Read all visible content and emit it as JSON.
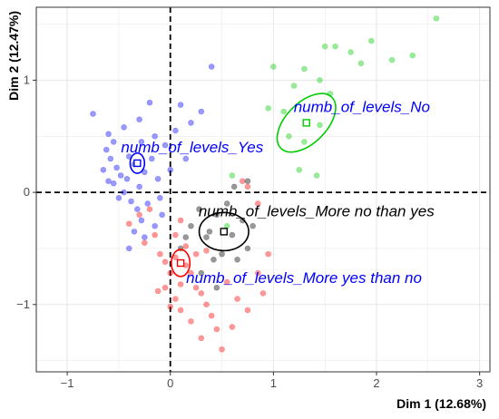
{
  "colors": {
    "yes": "#0000ff",
    "no": "#00cc00",
    "more_no": "#000000",
    "more_yes": "#ff0000",
    "grid": "#e6e6e6",
    "panel_border": "#333333",
    "label_blue": "#0000ff",
    "label_black": "#000000"
  },
  "chart_data": {
    "type": "scatter",
    "title": "",
    "xlabel": "Dim 1 (12.68%)",
    "ylabel": "Dim 2 (12.47%)",
    "xlim": [
      -1.3,
      3.1
    ],
    "ylim": [
      -1.6,
      1.65
    ],
    "xticks": [
      -1,
      0,
      1,
      2,
      3
    ],
    "yticks": [
      -1,
      0,
      1
    ],
    "reference_lines": {
      "x": 0,
      "y": 0,
      "style": "dashed"
    },
    "grid": true,
    "legend": "none",
    "series": [
      {
        "key": "yes",
        "color": "#0000ff",
        "points": [
          [
            -0.75,
            0.7
          ],
          [
            -0.6,
            0.52
          ],
          [
            -0.55,
            0.45
          ],
          [
            -0.62,
            0.38
          ],
          [
            -0.58,
            0.3
          ],
          [
            -0.52,
            0.22
          ],
          [
            -0.48,
            0.15
          ],
          [
            -0.55,
            0.08
          ],
          [
            -0.45,
            0.0
          ],
          [
            -0.4,
            0.32
          ],
          [
            -0.35,
            0.25
          ],
          [
            -0.42,
            0.12
          ],
          [
            -0.3,
            0.05
          ],
          [
            -0.25,
            0.18
          ],
          [
            -0.38,
            -0.08
          ],
          [
            -0.32,
            -0.15
          ],
          [
            -0.28,
            -0.25
          ],
          [
            -0.22,
            -0.1
          ],
          [
            -0.18,
            0.3
          ],
          [
            -0.12,
            0.12
          ],
          [
            -0.45,
            0.58
          ],
          [
            -0.3,
            0.65
          ],
          [
            -0.15,
            0.5
          ],
          [
            -0.05,
            0.42
          ],
          [
            0.05,
            0.55
          ],
          [
            -0.5,
            -0.05
          ],
          [
            -0.6,
            0.1
          ],
          [
            -0.35,
            -0.35
          ],
          [
            -0.25,
            -0.4
          ],
          [
            -0.15,
            -0.3
          ],
          [
            -0.4,
            -0.5
          ],
          [
            -0.1,
            -0.05
          ],
          [
            0.0,
            0.2
          ],
          [
            -0.2,
            0.8
          ],
          [
            0.1,
            0.78
          ],
          [
            0.4,
            1.12
          ],
          [
            0.3,
            0.72
          ],
          [
            0.15,
            0.3
          ],
          [
            0.2,
            0.62
          ],
          [
            -0.08,
            -0.2
          ],
          [
            -0.28,
            0.45
          ],
          [
            -0.65,
            0.2
          ]
        ]
      },
      {
        "key": "no",
        "color": "#00cc00",
        "points": [
          [
            1.0,
            1.12
          ],
          [
            0.95,
            0.75
          ],
          [
            1.2,
            0.95
          ],
          [
            1.3,
            1.1
          ],
          [
            1.45,
            1.0
          ],
          [
            1.6,
            1.3
          ],
          [
            1.75,
            1.25
          ],
          [
            1.85,
            1.15
          ],
          [
            1.95,
            1.35
          ],
          [
            2.15,
            1.18
          ],
          [
            2.35,
            1.22
          ],
          [
            2.58,
            1.55
          ],
          [
            1.5,
            1.3
          ],
          [
            1.55,
            0.88
          ],
          [
            1.25,
            0.2
          ],
          [
            1.45,
            0.6
          ],
          [
            1.1,
            0.72
          ],
          [
            1.42,
            0.15
          ],
          [
            1.3,
            0.45
          ],
          [
            0.55,
            -0.3
          ],
          [
            0.6,
            0.15
          ],
          [
            1.15,
            0.5
          ]
        ]
      },
      {
        "key": "more_no",
        "color": "#000000",
        "points": [
          [
            0.2,
            -0.3
          ],
          [
            0.35,
            -0.4
          ],
          [
            0.45,
            -0.2
          ],
          [
            0.5,
            -0.55
          ],
          [
            0.6,
            -0.38
          ],
          [
            0.7,
            -0.25
          ],
          [
            0.75,
            -0.5
          ],
          [
            0.42,
            -0.6
          ],
          [
            0.3,
            -0.72
          ],
          [
            0.55,
            -0.1
          ],
          [
            0.65,
            -0.6
          ],
          [
            0.28,
            -0.15
          ],
          [
            0.1,
            -0.5
          ],
          [
            0.45,
            -0.85
          ],
          [
            0.75,
            0.1
          ],
          [
            0.8,
            -0.3
          ],
          [
            0.15,
            -0.4
          ],
          [
            0.38,
            -0.35
          ],
          [
            0.62,
            0.05
          ]
        ]
      },
      {
        "key": "more_yes",
        "color": "#ff0000",
        "points": [
          [
            -0.4,
            -0.28
          ],
          [
            -0.3,
            -0.2
          ],
          [
            -0.25,
            -0.45
          ],
          [
            -0.15,
            -0.38
          ],
          [
            -0.1,
            -0.55
          ],
          [
            -0.05,
            -0.62
          ],
          [
            0.0,
            -0.72
          ],
          [
            0.05,
            -0.58
          ],
          [
            0.1,
            -0.82
          ],
          [
            0.15,
            -0.65
          ],
          [
            0.2,
            -0.72
          ],
          [
            0.25,
            -0.85
          ],
          [
            0.3,
            -0.9
          ],
          [
            0.35,
            -1.0
          ],
          [
            0.4,
            -1.1
          ],
          [
            0.45,
            -1.22
          ],
          [
            0.05,
            -0.95
          ],
          [
            0.1,
            -1.05
          ],
          [
            0.2,
            -1.15
          ],
          [
            0.3,
            -1.3
          ],
          [
            -0.05,
            -0.85
          ],
          [
            0.0,
            -1.02
          ],
          [
            0.15,
            -0.48
          ],
          [
            0.25,
            -0.55
          ],
          [
            0.55,
            -0.8
          ],
          [
            0.65,
            -0.95
          ],
          [
            0.75,
            -1.05
          ],
          [
            0.85,
            -0.72
          ],
          [
            0.95,
            -0.55
          ],
          [
            0.9,
            -0.9
          ],
          [
            0.6,
            -1.2
          ],
          [
            0.5,
            -1.4
          ],
          [
            0.35,
            -0.52
          ],
          [
            -0.2,
            -0.15
          ],
          [
            0.05,
            -0.38
          ],
          [
            0.1,
            -0.25
          ],
          [
            0.7,
            0.1
          ],
          [
            0.75,
            0.05
          ],
          [
            0.85,
            -0.1
          ],
          [
            -0.12,
            -0.88
          ]
        ]
      }
    ],
    "categories": [
      {
        "key": "yes",
        "label": "numb_of_levels_Yes",
        "x": -0.32,
        "y": 0.26,
        "ellipse_rx": 0.07,
        "ellipse_ry": 0.09,
        "ellipse_angle": 0,
        "label_color": "#0000ff"
      },
      {
        "key": "no",
        "label": "numb_of_levels_No",
        "x": 1.32,
        "y": 0.62,
        "ellipse_rx": 0.35,
        "ellipse_ry": 0.18,
        "ellipse_angle": 45,
        "label_color": "#0000ff"
      },
      {
        "key": "more_no",
        "label": "numb_of_levels_More no than yes",
        "x": 0.52,
        "y": -0.35,
        "ellipse_rx": 0.24,
        "ellipse_ry": 0.17,
        "ellipse_angle": 0,
        "label_color": "#000000"
      },
      {
        "key": "more_yes",
        "label": "numb_of_levels_More yes than no",
        "x": 0.1,
        "y": -0.63,
        "ellipse_rx": 0.09,
        "ellipse_ry": 0.12,
        "ellipse_angle": 0,
        "label_color": "#0000ff"
      }
    ]
  }
}
